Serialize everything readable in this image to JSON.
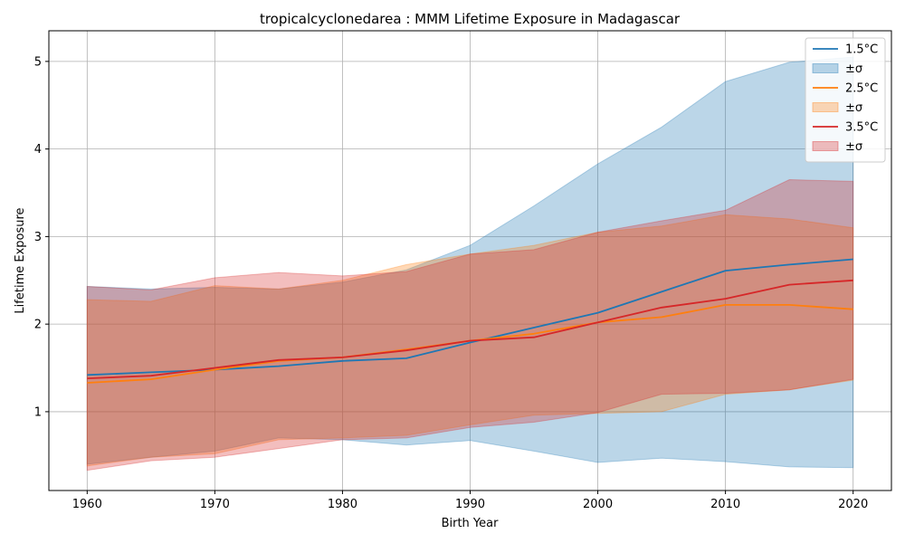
{
  "chart_data": {
    "type": "area",
    "title": "tropicalcyclonedarea : MMM Lifetime Exposure in Madagascar",
    "xlabel": "Birth Year",
    "ylabel": "Lifetime Exposure",
    "xlim": [
      1957,
      2023
    ],
    "ylim": [
      0.1,
      5.35
    ],
    "x_ticks": [
      1960,
      1970,
      1980,
      1990,
      2000,
      2010,
      2020
    ],
    "y_ticks": [
      1,
      2,
      3,
      4,
      5
    ],
    "grid": true,
    "legend_position": "top-right",
    "legend": [
      {
        "label": "1.5°C",
        "kind": "line",
        "series": 0
      },
      {
        "label": "±σ",
        "kind": "band",
        "series": 0
      },
      {
        "label": "2.5°C",
        "kind": "line",
        "series": 1
      },
      {
        "label": "±σ",
        "kind": "band",
        "series": 1
      },
      {
        "label": "3.5°C",
        "kind": "line",
        "series": 2
      },
      {
        "label": "±σ",
        "kind": "band",
        "series": 2
      }
    ],
    "x": [
      1960,
      1965,
      1970,
      1975,
      1980,
      1985,
      1990,
      1995,
      2000,
      2005,
      2010,
      2015,
      2020
    ],
    "series": [
      {
        "name": "1.5°C",
        "color": "#1f77b4",
        "values": [
          1.42,
          1.45,
          1.48,
          1.52,
          1.58,
          1.61,
          1.79,
          1.96,
          2.13,
          2.37,
          2.61,
          2.68,
          2.74
        ],
        "lower": [
          0.4,
          0.48,
          0.55,
          0.7,
          0.68,
          0.62,
          0.67,
          0.55,
          0.42,
          0.47,
          0.43,
          0.37,
          0.36
        ],
        "upper": [
          2.43,
          2.4,
          2.42,
          2.4,
          2.48,
          2.62,
          2.9,
          3.35,
          3.83,
          4.25,
          4.77,
          4.99,
          5.05
        ]
      },
      {
        "name": "2.5°C",
        "color": "#ff7f0e",
        "values": [
          1.33,
          1.37,
          1.48,
          1.58,
          1.62,
          1.71,
          1.81,
          1.89,
          2.02,
          2.08,
          2.22,
          2.22,
          2.17
        ],
        "lower": [
          0.38,
          0.48,
          0.52,
          0.68,
          0.7,
          0.73,
          0.85,
          0.96,
          0.98,
          1.0,
          1.2,
          1.25,
          1.36
        ],
        "upper": [
          2.28,
          2.26,
          2.44,
          2.4,
          2.5,
          2.68,
          2.8,
          2.9,
          3.05,
          3.12,
          3.25,
          3.2,
          3.1
        ]
      },
      {
        "name": "3.5°C",
        "color": "#d62728",
        "values": [
          1.38,
          1.41,
          1.5,
          1.59,
          1.62,
          1.7,
          1.81,
          1.85,
          2.02,
          2.19,
          2.29,
          2.45,
          2.5
        ],
        "lower": [
          0.33,
          0.44,
          0.48,
          0.58,
          0.68,
          0.7,
          0.82,
          0.88,
          0.99,
          1.2,
          1.21,
          1.25,
          1.37
        ],
        "upper": [
          2.43,
          2.39,
          2.53,
          2.59,
          2.55,
          2.6,
          2.8,
          2.85,
          3.05,
          3.18,
          3.3,
          3.65,
          3.63
        ]
      }
    ]
  }
}
